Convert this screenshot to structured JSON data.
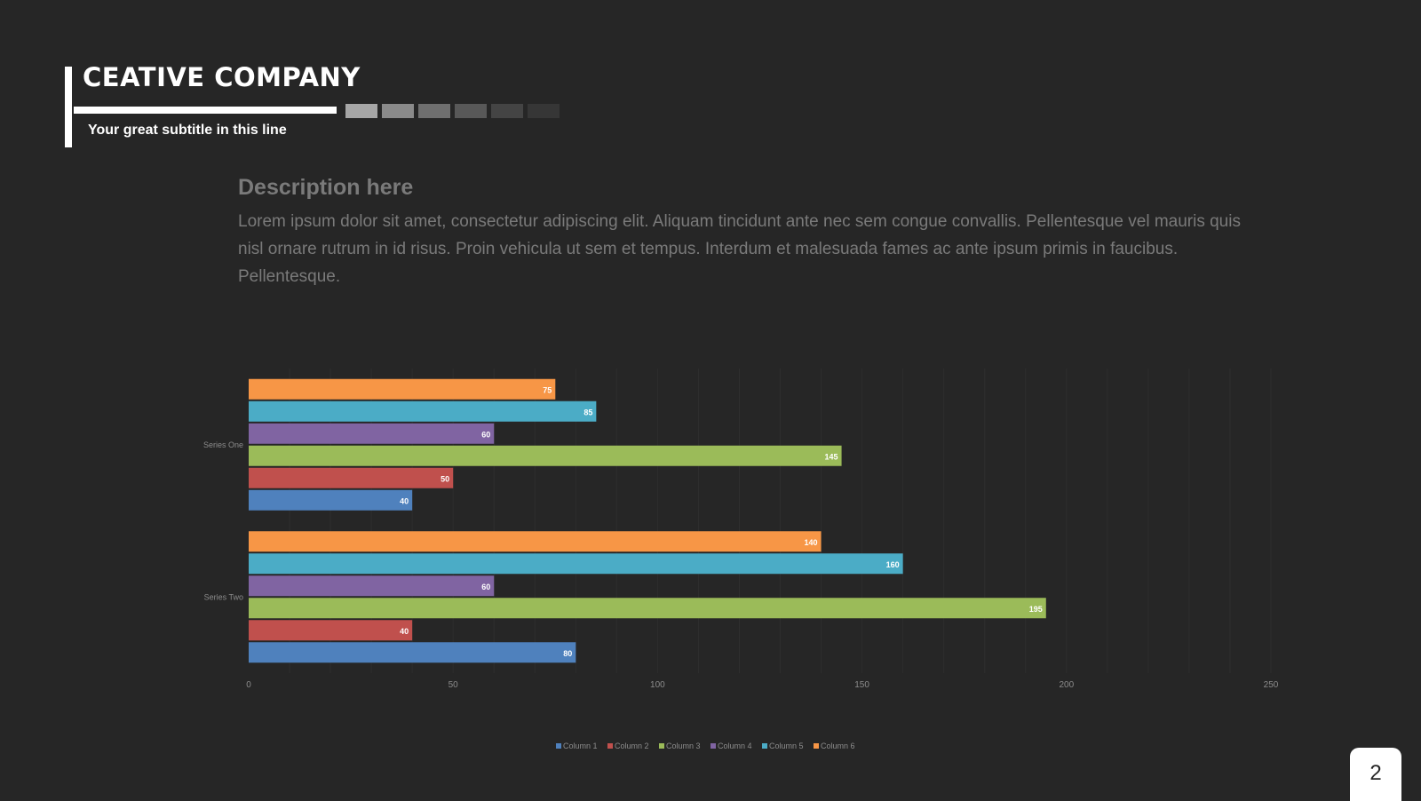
{
  "header": {
    "title": "CEATIVE  COMPANY",
    "subtitle": "Your great subtitle in this line",
    "swatch_colors": [
      "#a6a6a6",
      "#8a8a8a",
      "#6f6f6f",
      "#585858",
      "#444444",
      "#363636"
    ]
  },
  "description": {
    "heading": "Description here",
    "body": "Lorem ipsum dolor sit amet, consectetur adipiscing elit. Aliquam tincidunt ante nec sem congue convallis. Pellentesque vel mauris quis nisl ornare rutrum in id risus. Proin vehicula ut sem et tempus. Interdum et malesuada fames ac ante ipsum primis in faucibus. Pellentesque."
  },
  "chart_data": {
    "type": "bar",
    "orientation": "horizontal",
    "categories": [
      "Series One",
      "Series Two"
    ],
    "series": [
      {
        "name": "Column 1",
        "color": "#4f81bd",
        "values": [
          40,
          80
        ]
      },
      {
        "name": "Column 2",
        "color": "#c0504d",
        "values": [
          50,
          40
        ]
      },
      {
        "name": "Column 3",
        "color": "#9bbb59",
        "values": [
          145,
          195
        ]
      },
      {
        "name": "Column 4",
        "color": "#8064a2",
        "values": [
          60,
          60
        ]
      },
      {
        "name": "Column 5",
        "color": "#4bacc6",
        "values": [
          85,
          160
        ]
      },
      {
        "name": "Column 6",
        "color": "#f79646",
        "values": [
          75,
          140
        ]
      }
    ],
    "xlim": [
      0,
      250
    ],
    "xticks": [
      0,
      50,
      100,
      150,
      200,
      250
    ],
    "grid": true,
    "data_labels": true,
    "legend": "bottom"
  },
  "page": {
    "number": "2"
  }
}
